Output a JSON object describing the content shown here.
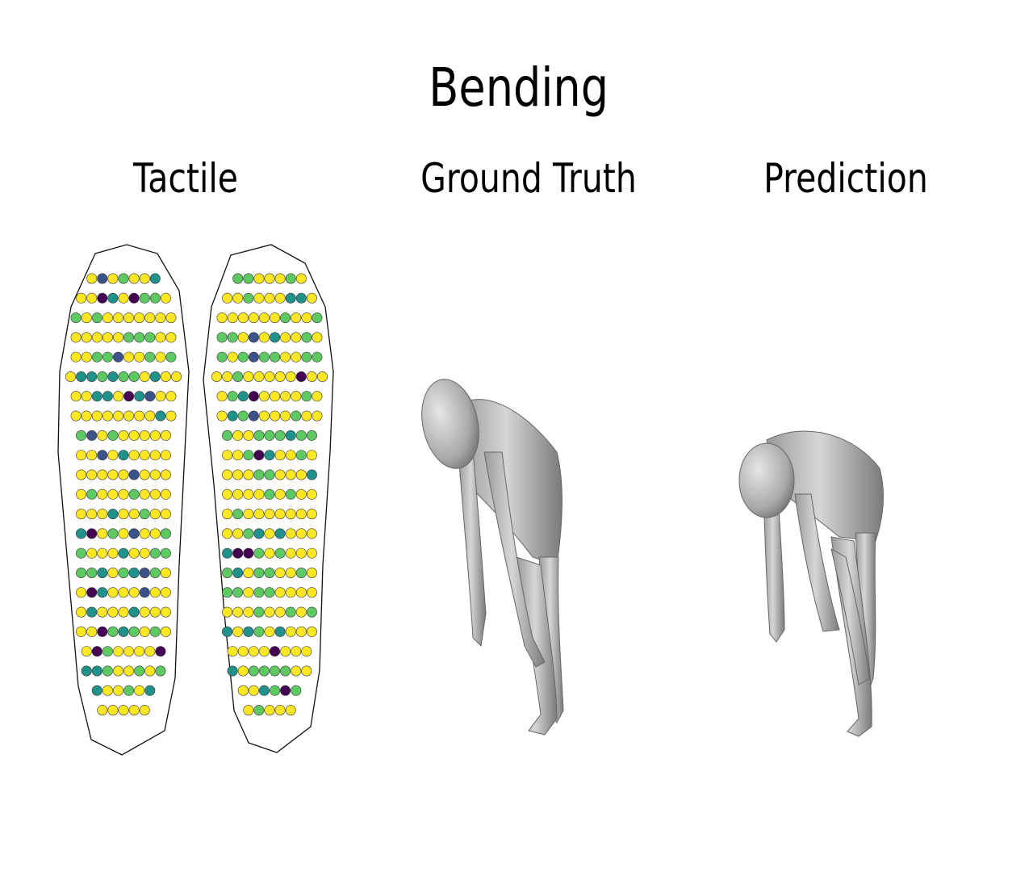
{
  "title": "Bending",
  "panels": [
    {
      "id": "tactile",
      "label": "Tactile"
    },
    {
      "id": "ground_truth",
      "label": "Ground Truth"
    },
    {
      "id": "prediction",
      "label": "Prediction"
    }
  ],
  "colormap": [
    "#440154",
    "#3b528b",
    "#21918c",
    "#5ec962",
    "#fde725"
  ]
}
